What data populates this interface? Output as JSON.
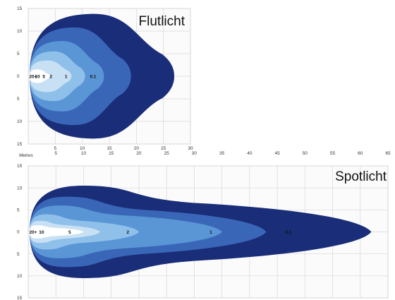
{
  "chart_data": [
    {
      "type": "area",
      "title": "Flutlicht",
      "xlabel": "Metres",
      "x_ticks": [
        "5",
        "10",
        "15",
        "20",
        "25",
        "30"
      ],
      "y_ticks": [
        "15",
        "10",
        "5",
        "0",
        "5",
        "10",
        "15"
      ],
      "xlim": [
        0,
        30
      ],
      "ylim": [
        -15,
        15
      ],
      "zone_labels": [
        "20+",
        "10",
        "5",
        "2",
        "1",
        "0.1"
      ],
      "reach_m": [
        4,
        8,
        10.5,
        14,
        19,
        27
      ],
      "half_width_m": [
        1.5,
        3.5,
        5.5,
        7.8,
        10.8,
        13.8
      ],
      "colors": [
        "#ffffff",
        "#c8e0f4",
        "#8fc0ea",
        "#5a96d6",
        "#3a66b8",
        "#1a2d78"
      ]
    },
    {
      "type": "area",
      "title": "Spotlicht",
      "xlabel": "Metres",
      "x_ticks": [
        "5",
        "10",
        "15",
        "20",
        "25",
        "30",
        "35",
        "40",
        "45",
        "50",
        "55",
        "60",
        "65"
      ],
      "y_ticks": [
        "15",
        "10",
        "5",
        "0",
        "5",
        "10",
        "15"
      ],
      "xlim": [
        0,
        65
      ],
      "ylim": [
        -15,
        15
      ],
      "zone_labels": [
        "20+",
        "10",
        "5",
        "2",
        "1",
        "0.1"
      ],
      "reach_m": [
        10,
        13,
        20,
        35,
        43,
        62
      ],
      "half_width_m": [
        1.5,
        2.5,
        4,
        6,
        8,
        10.5
      ],
      "colors": [
        "#ffffff",
        "#c8e0f4",
        "#8fc0ea",
        "#5a96d6",
        "#3a66b8",
        "#1a2d78"
      ]
    }
  ]
}
